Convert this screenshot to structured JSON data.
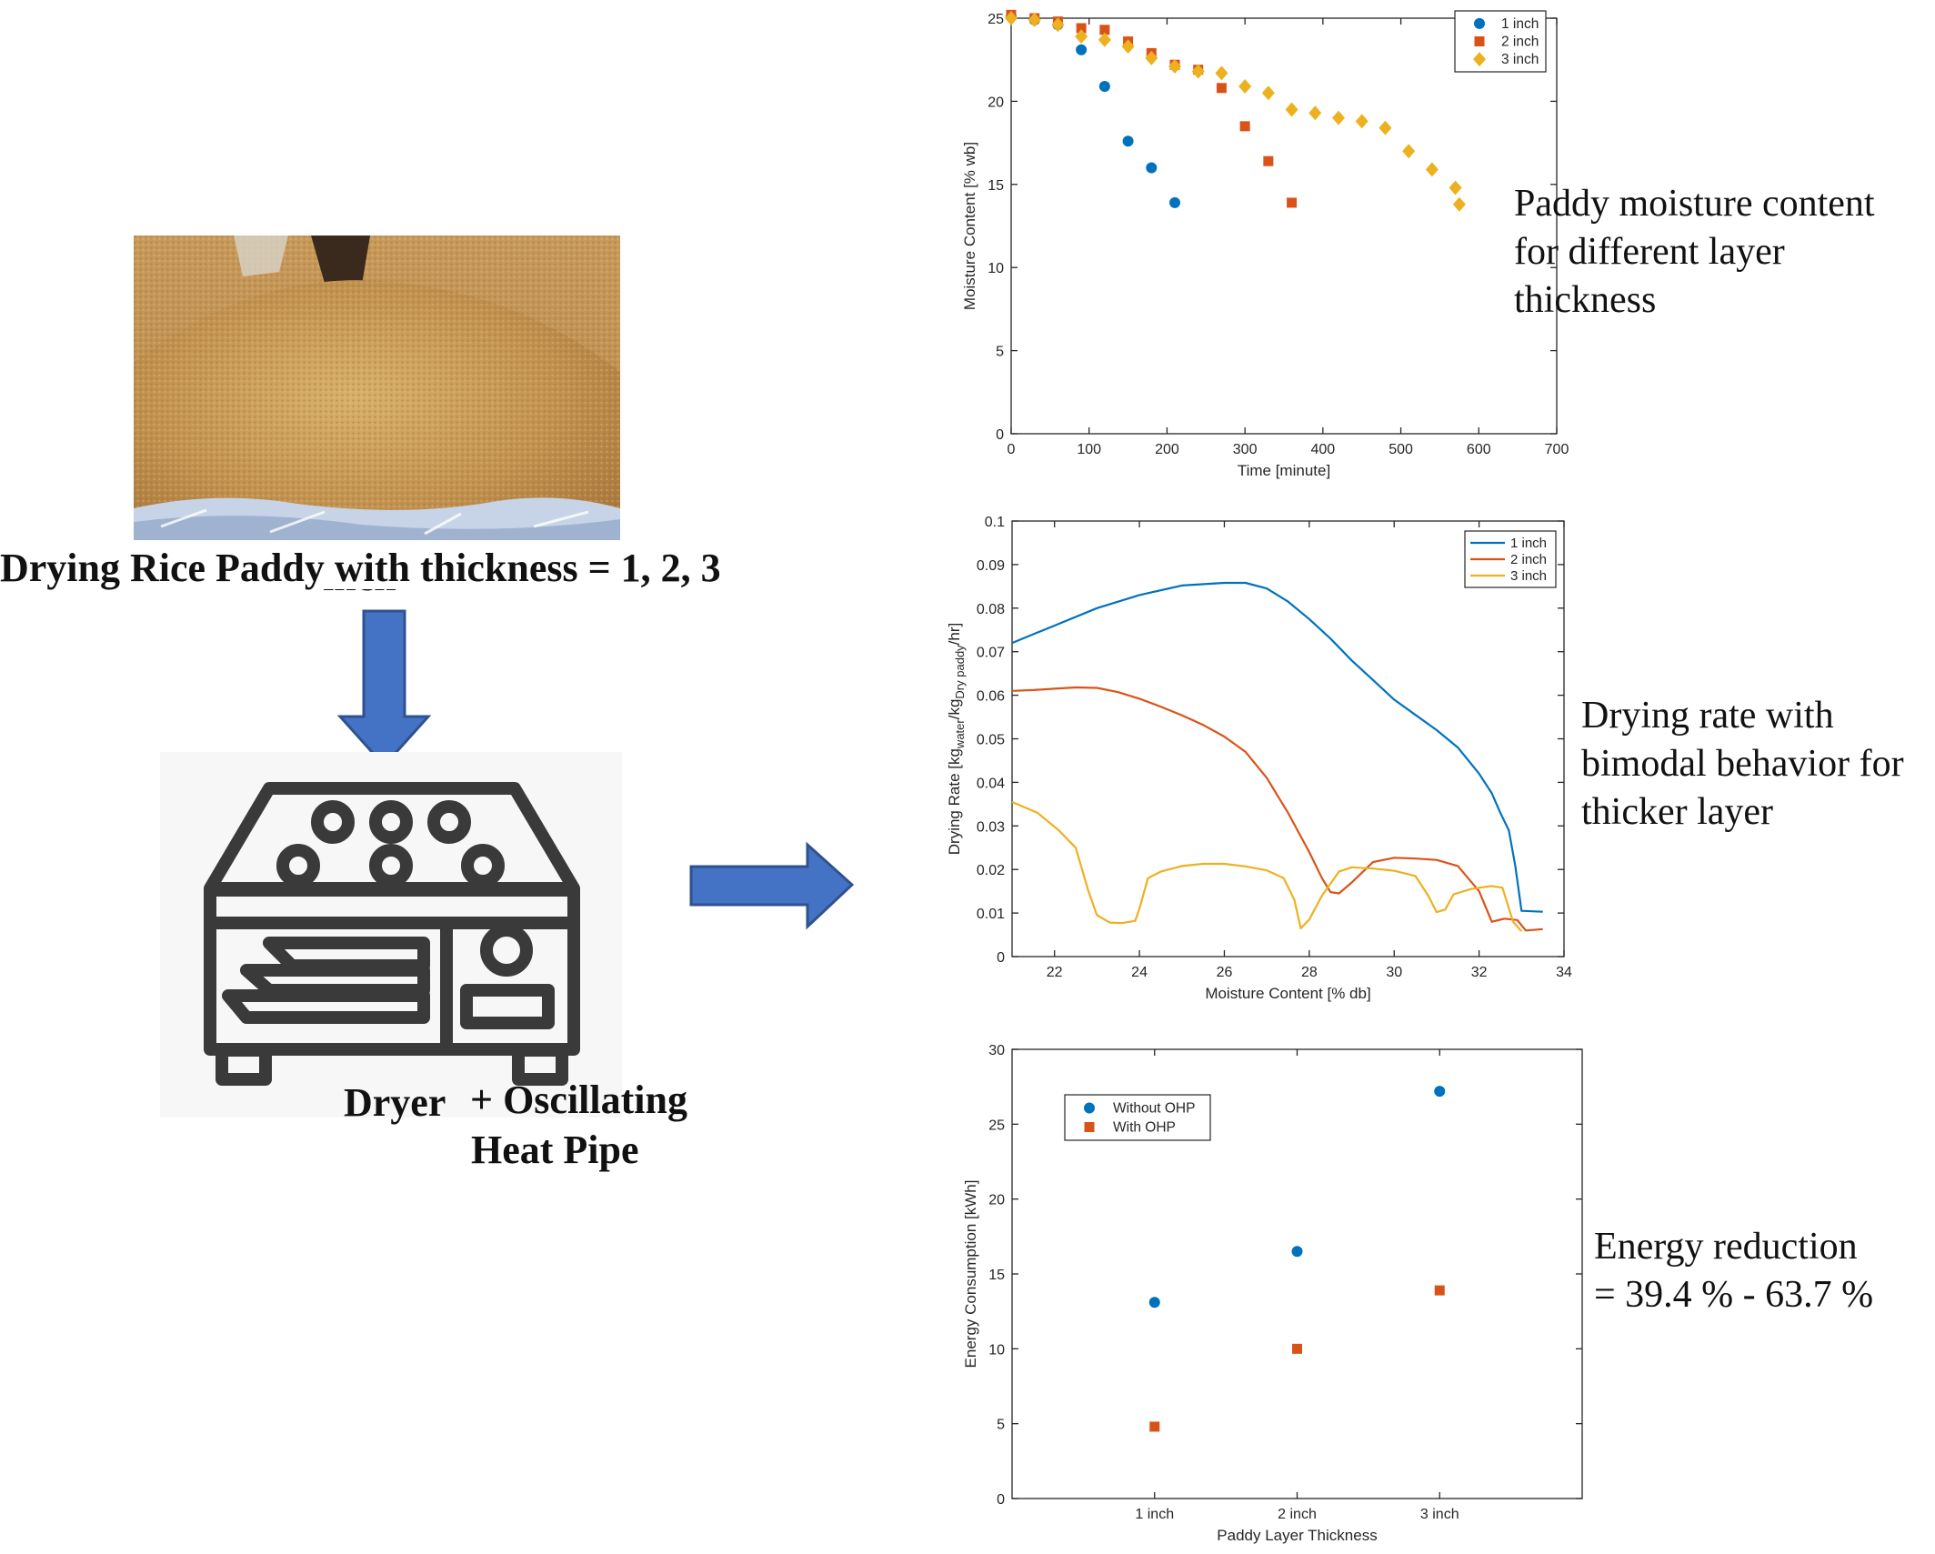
{
  "left": {
    "photo_caption_line1": "Drying Rice Paddy with thickness = 1, 2, 3",
    "photo_caption_line2": "inch",
    "dryer_label": "Dryer",
    "ohp_label_line1": "+ Oscillating",
    "ohp_label_line2": "Heat Pipe"
  },
  "annotations": {
    "moisture": [
      "Paddy moisture content",
      "for different layer",
      "thickness"
    ],
    "rate": [
      "Drying rate with",
      "bimodal behavior for",
      "thicker layer"
    ],
    "energy": [
      "Energy reduction",
      "= 39.4 % - 63.7 %"
    ]
  },
  "colors": {
    "blue": "#0072BD",
    "orange": "#D95319",
    "yellow": "#EDB120",
    "arrow": "#4472C4",
    "arrow_edge": "#2F528F"
  },
  "chart_data": [
    {
      "type": "scatter",
      "xlabel": "Time [minute]",
      "ylabel": "Moisture Content [% wb]",
      "xlim": [
        0,
        700
      ],
      "ylim": [
        0,
        25
      ],
      "xticks": [
        0,
        100,
        200,
        300,
        400,
        500,
        600,
        700
      ],
      "yticks": [
        0,
        5,
        10,
        15,
        20,
        25
      ],
      "legend_position": "top-right",
      "series": [
        {
          "name": "1 inch",
          "marker": "circle",
          "color": "#0072BD",
          "x": [
            0,
            30,
            60,
            90,
            120,
            150,
            180,
            210
          ],
          "y": [
            25.1,
            24.9,
            24.6,
            23.1,
            20.9,
            17.6,
            16.0,
            13.9
          ]
        },
        {
          "name": "2 inch",
          "marker": "square",
          "color": "#D95319",
          "x": [
            0,
            30,
            60,
            90,
            120,
            150,
            180,
            210,
            240,
            270,
            300,
            330,
            360
          ],
          "y": [
            25.2,
            25.0,
            24.8,
            24.4,
            24.3,
            23.6,
            22.9,
            22.2,
            21.9,
            20.8,
            18.5,
            16.4,
            13.9
          ]
        },
        {
          "name": "3 inch",
          "marker": "diamond",
          "color": "#EDB120",
          "x": [
            0,
            30,
            60,
            90,
            120,
            150,
            180,
            210,
            240,
            270,
            300,
            330,
            360,
            390,
            420,
            450,
            480,
            510,
            540,
            570,
            575
          ],
          "y": [
            25.0,
            24.9,
            24.6,
            23.9,
            23.7,
            23.3,
            22.6,
            22.1,
            21.8,
            21.7,
            20.9,
            20.5,
            19.5,
            19.3,
            19.0,
            18.8,
            18.4,
            17.0,
            15.9,
            14.8,
            13.8
          ]
        }
      ]
    },
    {
      "type": "line",
      "xlabel": "Moisture Content [% db]",
      "ylabel_parts": [
        "Drying Rate [kg",
        "water",
        "/kg",
        "Dry paddy",
        "/hr]"
      ],
      "xlim": [
        21,
        34
      ],
      "ylim": [
        0,
        0.1
      ],
      "xticks": [
        22,
        24,
        26,
        28,
        30,
        32,
        34
      ],
      "yticks": [
        0,
        0.01,
        0.02,
        0.03,
        0.04,
        0.05,
        0.06,
        0.07,
        0.08,
        0.09,
        0.1
      ],
      "legend_position": "top-right",
      "series": [
        {
          "name": "1 inch",
          "color": "#0072BD",
          "x": [
            21.0,
            21.5,
            22.0,
            23.0,
            24.0,
            25.0,
            26.0,
            26.5,
            27.0,
            27.5,
            28.0,
            28.5,
            29.0,
            29.5,
            30.0,
            30.5,
            31.0,
            31.5,
            32.0,
            32.3,
            32.5,
            32.7,
            32.85,
            33.0,
            33.5
          ],
          "y": [
            0.072,
            0.074,
            0.076,
            0.08,
            0.083,
            0.0852,
            0.0858,
            0.0858,
            0.0845,
            0.0815,
            0.0775,
            0.073,
            0.068,
            0.0635,
            0.059,
            0.0555,
            0.052,
            0.048,
            0.042,
            0.0375,
            0.033,
            0.029,
            0.021,
            0.0105,
            0.0103
          ]
        },
        {
          "name": "2 inch",
          "color": "#D95319",
          "x": [
            21.0,
            21.5,
            22.0,
            22.5,
            23.0,
            23.5,
            24.0,
            24.5,
            25.0,
            25.5,
            26.0,
            26.5,
            27.0,
            27.5,
            28.0,
            28.3,
            28.5,
            28.7,
            29.0,
            29.5,
            30.0,
            30.5,
            31.0,
            31.5,
            32.0,
            32.3,
            32.6,
            32.9,
            33.1,
            33.5
          ],
          "y": [
            0.061,
            0.0612,
            0.0615,
            0.0618,
            0.0617,
            0.0607,
            0.0592,
            0.0574,
            0.0554,
            0.0532,
            0.0505,
            0.047,
            0.041,
            0.033,
            0.024,
            0.018,
            0.0148,
            0.0145,
            0.017,
            0.0217,
            0.0227,
            0.0225,
            0.0222,
            0.0208,
            0.015,
            0.008,
            0.0087,
            0.0084,
            0.006,
            0.0063
          ]
        },
        {
          "name": "3 inch",
          "color": "#EDB120",
          "x": [
            21.0,
            21.6,
            22.1,
            22.5,
            22.8,
            23.0,
            23.3,
            23.6,
            23.9,
            24.0,
            24.2,
            24.5,
            25.0,
            25.5,
            26.0,
            26.5,
            27.0,
            27.4,
            27.65,
            27.8,
            28.0,
            28.3,
            28.7,
            29.0,
            29.5,
            30.0,
            30.5,
            30.8,
            31.0,
            31.2,
            31.4,
            31.8,
            32.0,
            32.3,
            32.55,
            32.8,
            33.0
          ],
          "y": [
            0.0355,
            0.033,
            0.029,
            0.025,
            0.015,
            0.0095,
            0.0078,
            0.0077,
            0.0082,
            0.011,
            0.018,
            0.0195,
            0.0208,
            0.0213,
            0.0213,
            0.0207,
            0.0198,
            0.018,
            0.013,
            0.0065,
            0.0085,
            0.014,
            0.0195,
            0.0205,
            0.0202,
            0.0197,
            0.0185,
            0.014,
            0.0102,
            0.0108,
            0.0143,
            0.0155,
            0.0158,
            0.0162,
            0.0158,
            0.008,
            0.0058
          ]
        }
      ]
    },
    {
      "type": "scatter",
      "xlabel": "Paddy Layer Thickness",
      "ylabel": "Energy Consumption [kWh]",
      "categories": [
        "1 inch",
        "2 inch",
        "3 inch"
      ],
      "ylim": [
        0,
        30
      ],
      "yticks": [
        0,
        5,
        10,
        15,
        20,
        25,
        30
      ],
      "legend_position": "top-left",
      "series": [
        {
          "name": "Without OHP",
          "marker": "circle",
          "color": "#0072BD",
          "values": [
            13.1,
            16.5,
            27.2
          ]
        },
        {
          "name": "With OHP",
          "marker": "square",
          "color": "#D95319",
          "values": [
            4.8,
            10.0,
            13.9
          ]
        }
      ]
    }
  ]
}
